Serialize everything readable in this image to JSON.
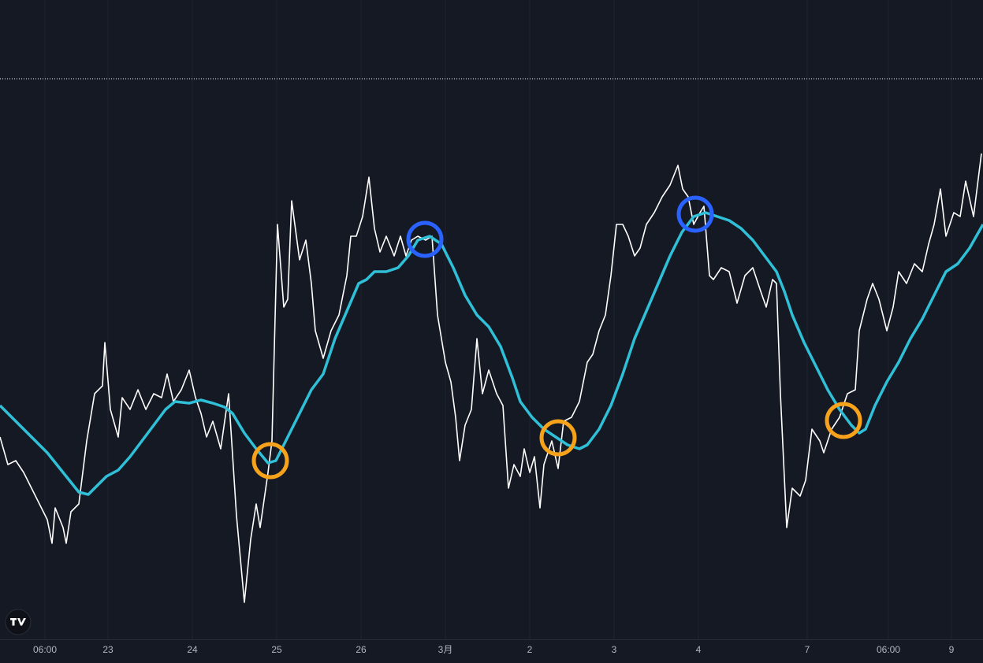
{
  "chart_data": {
    "type": "line",
    "xlim": [
      0,
      1247
    ],
    "ylim": [
      0,
      812
    ],
    "xticks": [
      {
        "value": 57,
        "label": "06:00"
      },
      {
        "value": 137,
        "label": "23"
      },
      {
        "value": 244,
        "label": "24"
      },
      {
        "value": 351,
        "label": "25"
      },
      {
        "value": 458,
        "label": "26"
      },
      {
        "value": 565,
        "label": "3月"
      },
      {
        "value": 672,
        "label": "2"
      },
      {
        "value": 779,
        "label": "3"
      },
      {
        "value": 886,
        "label": "4"
      },
      {
        "value": 1024,
        "label": "7"
      },
      {
        "value": 1127,
        "label": "06:00"
      },
      {
        "value": 1207,
        "label": "9"
      }
    ],
    "grid": true,
    "price_line": 712,
    "series": [
      {
        "color": "#ffffff",
        "x": [
          0,
          10,
          20,
          30,
          40,
          50,
          60,
          66,
          70,
          80,
          84,
          90,
          100,
          110,
          120,
          130,
          133,
          140,
          150,
          155,
          165,
          175,
          185,
          195,
          205,
          212,
          220,
          230,
          240,
          248,
          255,
          262,
          270,
          280,
          290,
          300,
          310,
          318,
          325,
          330,
          340,
          345,
          352,
          360,
          365,
          370,
          380,
          388,
          395,
          400,
          410,
          420,
          430,
          440,
          445,
          452,
          460,
          468,
          475,
          482,
          490,
          500,
          508,
          515,
          522,
          530,
          540,
          548,
          555,
          565,
          572,
          578,
          583,
          590,
          598,
          605,
          612,
          620,
          630,
          638,
          645,
          652,
          660,
          665,
          672,
          678,
          685,
          690,
          700,
          708,
          715,
          725,
          735,
          745,
          752,
          760,
          768,
          775,
          782,
          790,
          797,
          805,
          812,
          820,
          830,
          840,
          850,
          860,
          866,
          873,
          880,
          888,
          893,
          900,
          905,
          915,
          925,
          935,
          945,
          955,
          965,
          972,
          980,
          985,
          990,
          998,
          1005,
          1015,
          1022,
          1030,
          1040,
          1045,
          1055,
          1065,
          1075,
          1085,
          1090,
          1100,
          1107,
          1115,
          1125,
          1133,
          1140,
          1150,
          1160,
          1170,
          1178,
          1185,
          1193,
          1200,
          1210,
          1218,
          1225,
          1235,
          1245
        ],
        "values": [
          257,
          222,
          227,
          212,
          192,
          172,
          152,
          122,
          167,
          142,
          122,
          162,
          172,
          252,
          312,
          322,
          377,
          292,
          257,
          307,
          292,
          317,
          292,
          312,
          307,
          337,
          302,
          317,
          342,
          307,
          287,
          257,
          277,
          242,
          312,
          157,
          47,
          127,
          172,
          142,
          212,
          252,
          527,
          422,
          432,
          557,
          482,
          507,
          452,
          392,
          357,
          392,
          412,
          462,
          512,
          512,
          537,
          587,
          522,
          492,
          512,
          487,
          512,
          487,
          507,
          512,
          507,
          512,
          412,
          352,
          327,
          282,
          227,
          272,
          292,
          382,
          312,
          342,
          312,
          297,
          192,
          222,
          207,
          242,
          212,
          232,
          167,
          222,
          252,
          217,
          277,
          282,
          302,
          352,
          362,
          392,
          412,
          462,
          527,
          527,
          512,
          487,
          497,
          527,
          542,
          562,
          577,
          602,
          572,
          562,
          527,
          542,
          550,
          462,
          457,
          472,
          467,
          427,
          462,
          472,
          442,
          422,
          457,
          452,
          312,
          142,
          192,
          182,
          202,
          267,
          252,
          237,
          267,
          282,
          312,
          317,
          392,
          432,
          452,
          432,
          392,
          422,
          467,
          452,
          477,
          467,
          502,
          527,
          572,
          512,
          542,
          537,
          582,
          537,
          617
        ]
      },
      {
        "color": "#2fc0d8",
        "x": [
          0,
          20,
          40,
          60,
          80,
          100,
          112,
          125,
          135,
          150,
          165,
          180,
          195,
          210,
          222,
          240,
          255,
          270,
          285,
          295,
          310,
          325,
          340,
          350,
          365,
          380,
          395,
          410,
          425,
          440,
          455,
          465,
          475,
          490,
          505,
          518,
          530,
          545,
          560,
          575,
          590,
          605,
          620,
          635,
          650,
          660,
          675,
          690,
          705,
          720,
          735,
          745,
          760,
          775,
          790,
          805,
          820,
          835,
          850,
          865,
          880,
          895,
          910,
          925,
          940,
          955,
          970,
          985,
          995,
          1005,
          1020,
          1035,
          1050,
          1065,
          1080,
          1090,
          1098,
          1110,
          1125,
          1140,
          1155,
          1170,
          1185,
          1200,
          1215,
          1230,
          1247
        ],
        "values": [
          297,
          277,
          257,
          237,
          212,
          187,
          184,
          197,
          207,
          215,
          232,
          252,
          272,
          292,
          302,
          300,
          304,
          300,
          295,
          287,
          262,
          242,
          224,
          227,
          257,
          287,
          317,
          337,
          382,
          417,
          452,
          457,
          467,
          467,
          472,
          487,
          507,
          512,
          502,
          472,
          437,
          412,
          397,
          372,
          332,
          302,
          282,
          267,
          257,
          247,
          242,
          247,
          267,
          297,
          337,
          382,
          417,
          452,
          487,
          517,
          537,
          542,
          537,
          532,
          522,
          507,
          487,
          467,
          442,
          412,
          377,
          347,
          317,
          292,
          272,
          262,
          267,
          297,
          327,
          352,
          382,
          407,
          437,
          467,
          477,
          497,
          527
        ]
      }
    ],
    "markers": [
      {
        "x": 343,
        "y": 227,
        "color": "#f7a21b"
      },
      {
        "x": 539,
        "y": 508,
        "color": "#2962ff"
      },
      {
        "x": 708,
        "y": 256,
        "color": "#f7a21b"
      },
      {
        "x": 882,
        "y": 540,
        "color": "#2962ff"
      },
      {
        "x": 1070,
        "y": 278,
        "color": "#f7a21b"
      }
    ]
  }
}
